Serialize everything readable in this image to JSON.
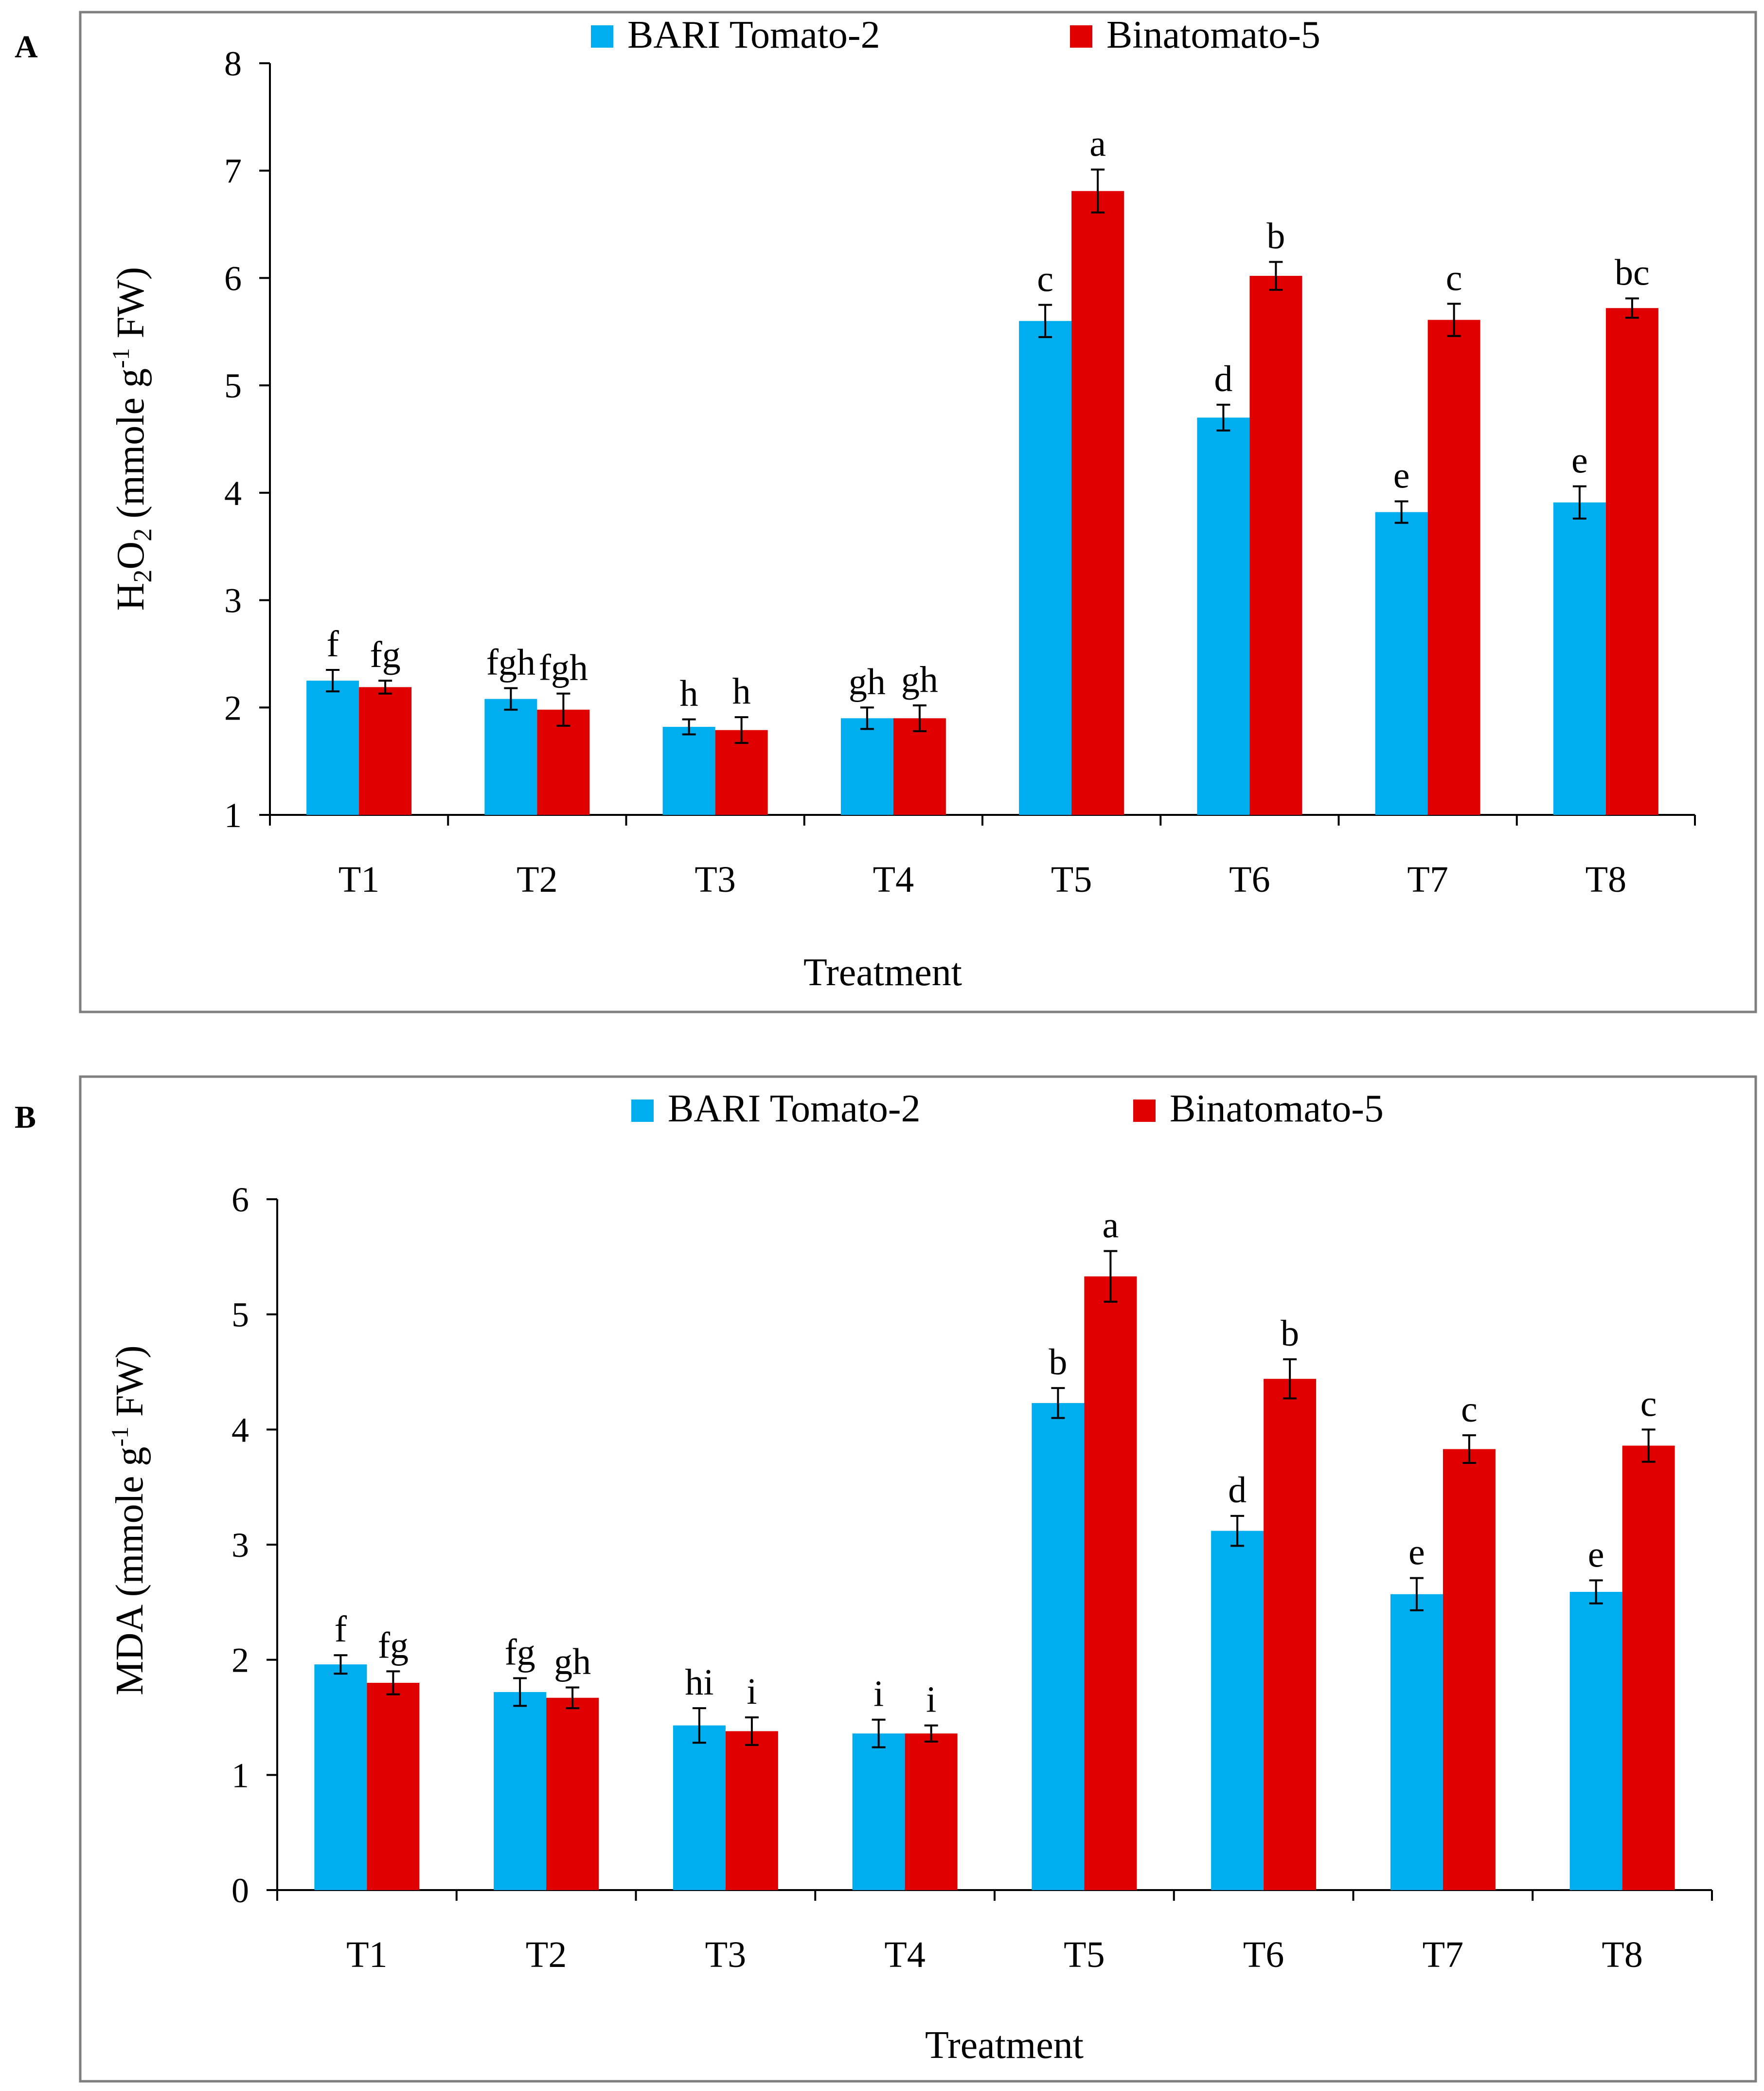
{
  "chart_data": [
    {
      "panel_label": "A",
      "type": "bar",
      "title": "",
      "xlabel": "Treatment",
      "ylabel_parts": [
        "H",
        "2",
        "O",
        "2",
        " (mmole g",
        "-1",
        " FW)"
      ],
      "ylim": [
        1,
        8
      ],
      "yticks": [
        1,
        2,
        3,
        4,
        5,
        6,
        7,
        8
      ],
      "categories": [
        "T1",
        "T2",
        "T3",
        "T4",
        "T5",
        "T6",
        "T7",
        "T8"
      ],
      "legend_position": "top-center",
      "series": [
        {
          "name": "BARI Tomato-2",
          "color": "#00aeef",
          "values": [
            2.25,
            2.08,
            1.82,
            1.9,
            5.6,
            4.7,
            3.82,
            3.91
          ],
          "errors": [
            0.1,
            0.1,
            0.07,
            0.1,
            0.15,
            0.12,
            0.1,
            0.15
          ],
          "letters": [
            "f",
            "fgh",
            "h",
            "gh",
            "c",
            "d",
            "e",
            "e"
          ]
        },
        {
          "name": "Binatomato-5",
          "color": "#e00000",
          "values": [
            2.19,
            1.98,
            1.79,
            1.9,
            6.81,
            6.02,
            5.61,
            5.72
          ],
          "errors": [
            0.06,
            0.15,
            0.12,
            0.12,
            0.2,
            0.13,
            0.15,
            0.09
          ],
          "letters": [
            "fg",
            "fgh",
            "h",
            "gh",
            "a",
            "b",
            "c",
            "bc"
          ]
        }
      ]
    },
    {
      "panel_label": "B",
      "type": "bar",
      "title": "",
      "xlabel": "Treatment",
      "ylabel_parts": [
        "MDA (mmole g",
        "-1",
        " FW)"
      ],
      "ylim": [
        0,
        6
      ],
      "yticks": [
        0,
        1,
        2,
        3,
        4,
        5,
        6
      ],
      "categories": [
        "T1",
        "T2",
        "T3",
        "T4",
        "T5",
        "T6",
        "T7",
        "T8"
      ],
      "legend_position": "top-center",
      "series": [
        {
          "name": "BARI Tomato-2",
          "color": "#00aeef",
          "values": [
            1.96,
            1.72,
            1.43,
            1.36,
            4.23,
            3.12,
            2.57,
            2.59
          ],
          "errors": [
            0.08,
            0.12,
            0.15,
            0.12,
            0.13,
            0.13,
            0.14,
            0.1
          ],
          "letters": [
            "f",
            "fg",
            "hi",
            "i",
            "b",
            "d",
            "e",
            "e"
          ]
        },
        {
          "name": "Binatomato-5",
          "color": "#e00000",
          "values": [
            1.8,
            1.67,
            1.38,
            1.36,
            5.33,
            4.44,
            3.83,
            3.86
          ],
          "errors": [
            0.1,
            0.09,
            0.12,
            0.07,
            0.22,
            0.17,
            0.12,
            0.14
          ],
          "letters": [
            "fg",
            "gh",
            "i",
            "i",
            "a",
            "b",
            "c",
            "c"
          ]
        }
      ]
    }
  ]
}
